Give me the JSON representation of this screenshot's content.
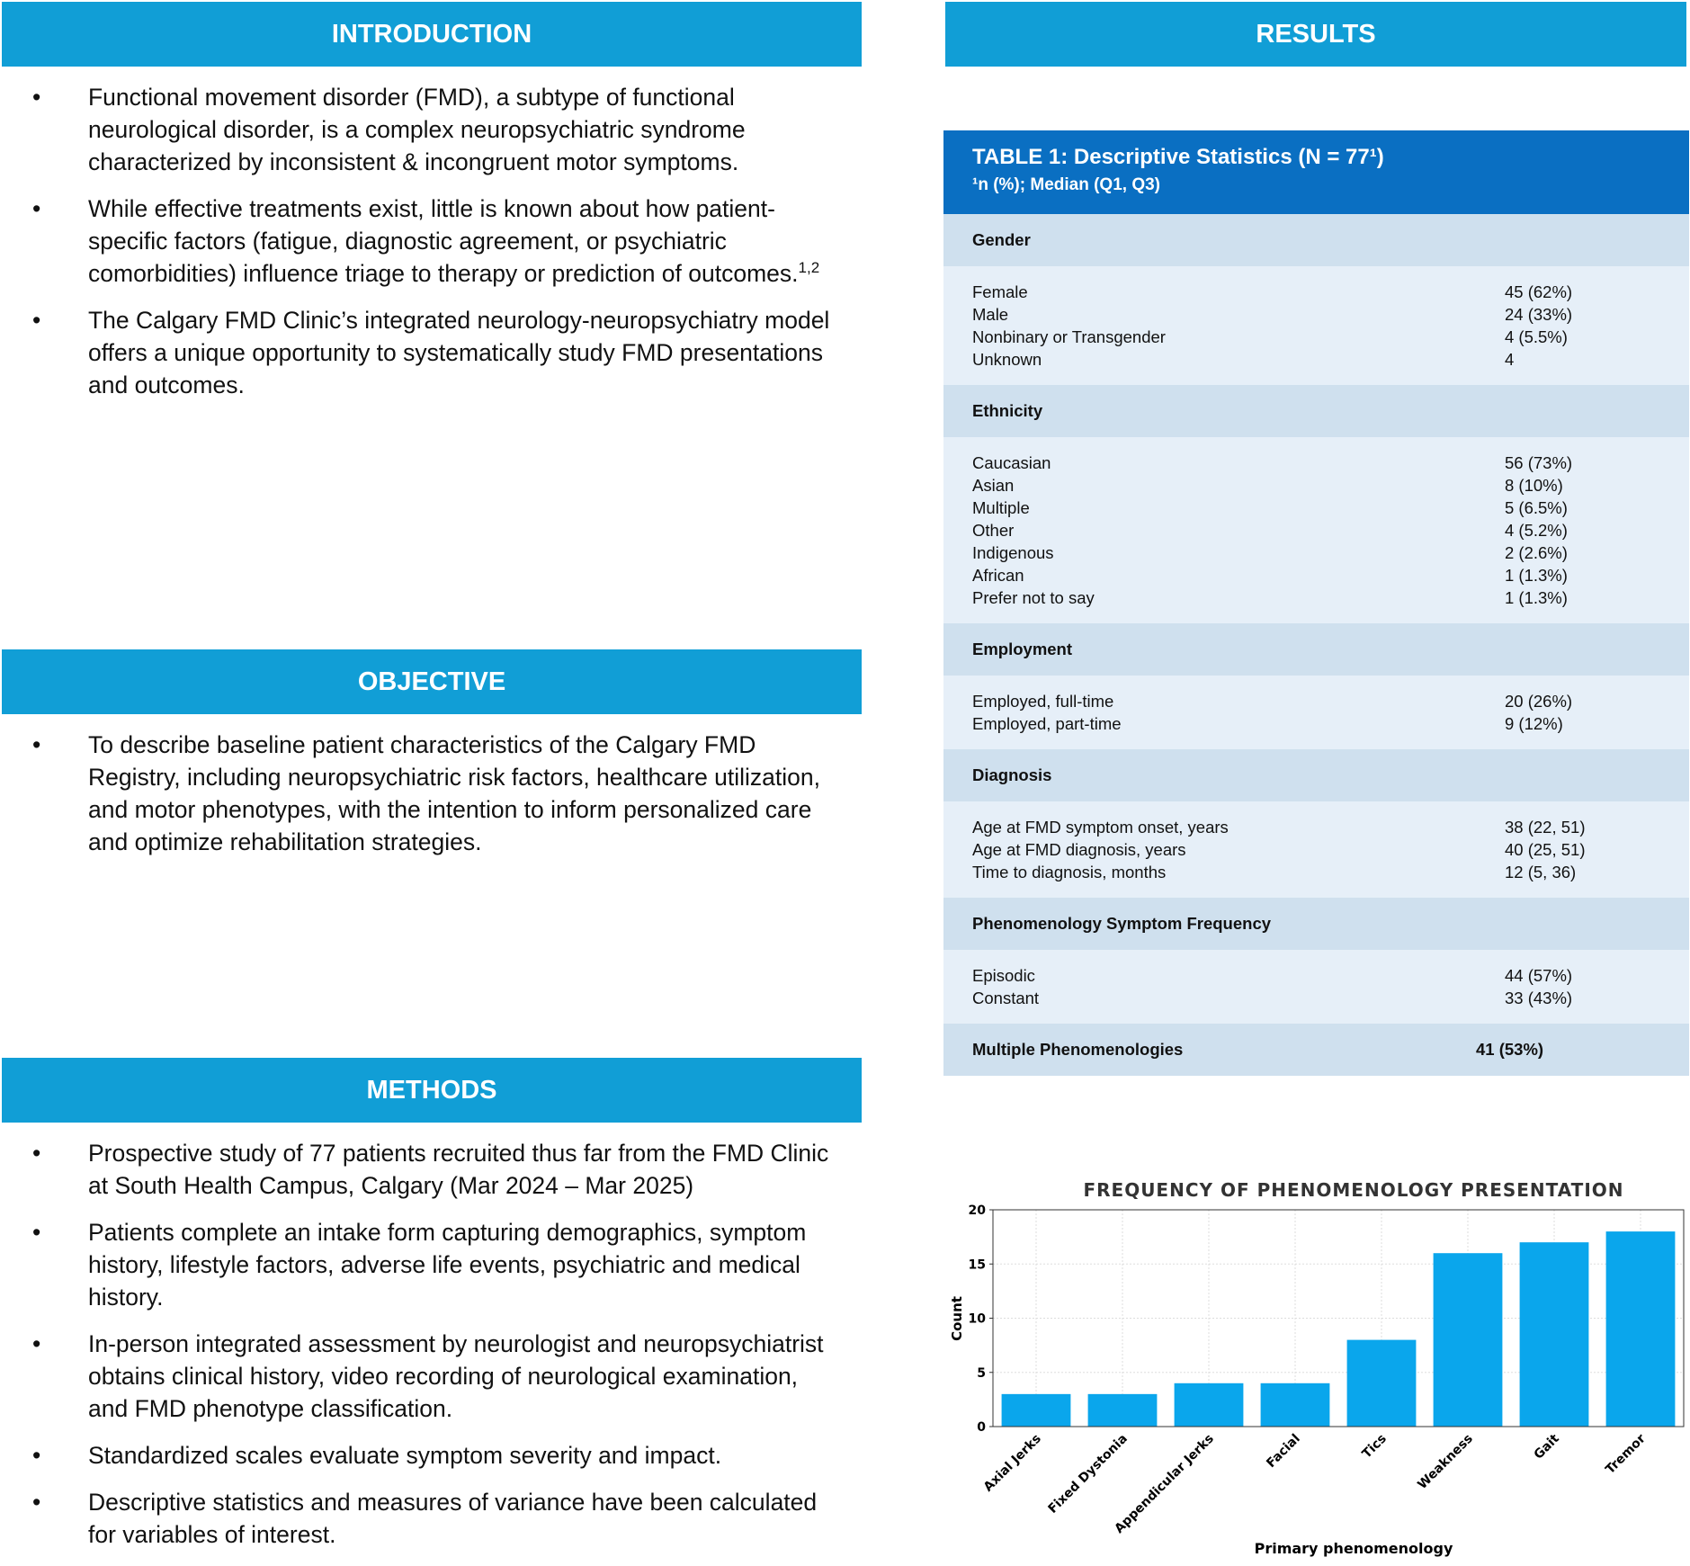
{
  "introduction": {
    "heading": "INTRODUCTION",
    "bullets": [
      "Functional movement disorder (FMD), a subtype of functional neurological disorder, is a complex neuropsychiatric syndrome characterized by inconsistent & incongruent motor symptoms.",
      {
        "text": "While effective treatments exist, little is known about how patient-specific factors (fatigue, diagnostic agreement, or psychiatric comorbidities) influence triage to therapy or prediction of outcomes.",
        "superscript": "1,2"
      },
      "The Calgary FMD Clinic’s integrated neurology-neuropsychiatry model offers a unique opportunity to systematically study FMD presentations and outcomes."
    ]
  },
  "objective": {
    "heading": "OBJECTIVE",
    "bullets": [
      "To describe baseline patient characteristics of the Calgary FMD Registry, including neuropsychiatric risk factors, healthcare utilization, and motor phenotypes, with the intention to inform personalized care and optimize rehabilitation strategies."
    ]
  },
  "methods": {
    "heading": "METHODS",
    "bullets": [
      "Prospective study of 77 patients recruited thus far from the FMD Clinic at South Health Campus, Calgary (Mar 2024 – Mar 2025)",
      "Patients complete an intake form capturing demographics, symptom history, lifestyle factors, adverse life events, psychiatric and medical history.",
      "In-person integrated assessment by neurologist and neuropsychiatrist obtains clinical history, video recording of neurological examination, and FMD phenotype classification.",
      "Standardized scales evaluate symptom severity and impact.",
      "Descriptive statistics and measures of variance have been calculated for variables of interest."
    ]
  },
  "results": {
    "heading": "RESULTS",
    "table": {
      "title": "TABLE 1: Descriptive Statistics (N = 77¹)",
      "subtitle": "¹n (%); Median (Q1, Q3)",
      "sections": [
        {
          "heading": "Gender",
          "rows": [
            [
              "Female",
              "45 (62%)"
            ],
            [
              "Male",
              "24 (33%)"
            ],
            [
              "Nonbinary or Transgender",
              "4 (5.5%)"
            ],
            [
              "Unknown",
              "4"
            ]
          ]
        },
        {
          "heading": "Ethnicity",
          "rows": [
            [
              "Caucasian",
              "56 (73%)"
            ],
            [
              "Asian",
              "8 (10%)"
            ],
            [
              "Multiple",
              "5 (6.5%)"
            ],
            [
              "Other",
              "4 (5.2%)"
            ],
            [
              "Indigenous",
              "2 (2.6%)"
            ],
            [
              "African",
              "1 (1.3%)"
            ],
            [
              "Prefer not to say",
              "1 (1.3%)"
            ]
          ]
        },
        {
          "heading": "Employment",
          "rows": [
            [
              "Employed, full-time",
              "20 (26%)"
            ],
            [
              "Employed, part-time",
              "9 (12%)"
            ]
          ]
        },
        {
          "heading": "Diagnosis",
          "rows": [
            [
              "Age at FMD symptom onset, years",
              "38 (22, 51)"
            ],
            [
              "Age at FMD diagnosis, years",
              "40 (25, 51)"
            ],
            [
              "Time to diagnosis, months",
              "12 (5, 36)"
            ]
          ]
        },
        {
          "heading": "Phenomenology Symptom Frequency",
          "rows": [
            [
              "Episodic",
              "44 (57%)"
            ],
            [
              "Constant",
              "33 (43%)"
            ]
          ]
        },
        {
          "heading": "Multiple Phenomenologies",
          "value": "41 (53%)"
        }
      ]
    }
  },
  "chart_data": {
    "type": "bar",
    "title": "FREQUENCY OF PHENOMENOLOGY PRESENTATION",
    "xlabel": "Primary phenomenology",
    "ylabel": "Count",
    "categories": [
      "Axial Jerks",
      "Fixed Dystonia",
      "Appendicular Jerks",
      "Facial",
      "Tics",
      "Weakness",
      "Gait",
      "Tremor"
    ],
    "values": [
      3,
      3,
      4,
      4,
      8,
      16,
      17,
      18
    ],
    "color": "#0aa6ec",
    "ylim": [
      0,
      20
    ],
    "yticks": [
      0,
      5,
      10,
      15,
      20
    ],
    "grid": true
  }
}
